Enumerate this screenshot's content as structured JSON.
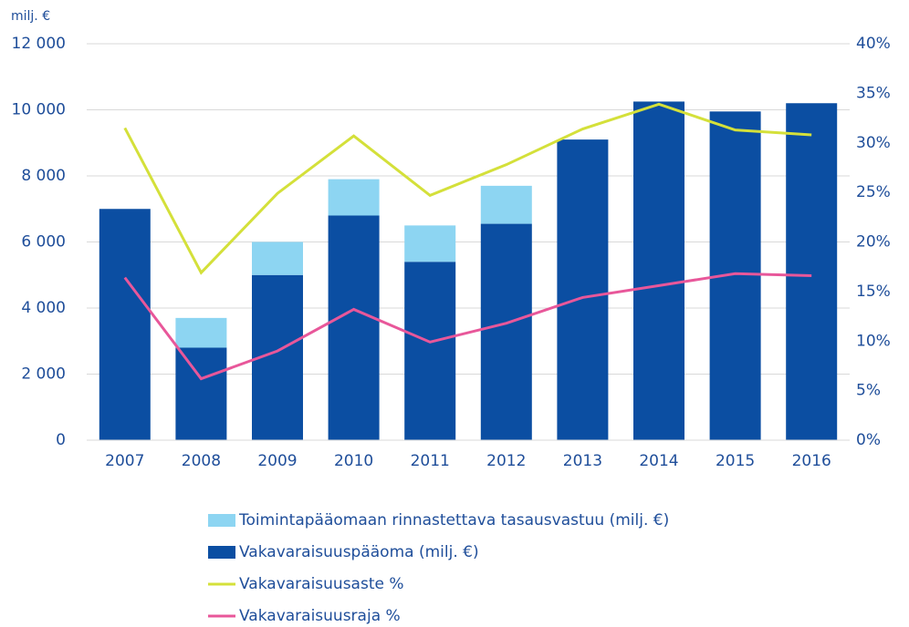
{
  "chart_data": {
    "type": "bar",
    "y_axis_label": "milj. €",
    "categories": [
      "2007",
      "2008",
      "2009",
      "2010",
      "2011",
      "2012",
      "2013",
      "2014",
      "2015",
      "2016"
    ],
    "series": [
      {
        "name": "Toimintapääomaan rinnastettava tasausvastuu (milj. €)",
        "type": "bar",
        "color": "#8dd5f2",
        "values": [
          0,
          900,
          1000,
          1100,
          1100,
          1150,
          0,
          0,
          0,
          0
        ]
      },
      {
        "name": "Vakavaraisuuspääoma (milj. €)",
        "type": "bar",
        "color": "#0b4ea2",
        "values": [
          7000,
          2800,
          5000,
          6800,
          5400,
          6550,
          9100,
          10250,
          9950,
          10200
        ]
      },
      {
        "name": "Vakavaraisuusaste %",
        "type": "line",
        "axis": "y2",
        "color": "#d4e03a",
        "values": [
          31.5,
          16.9,
          24.9,
          30.7,
          24.7,
          27.8,
          31.4,
          33.9,
          31.3,
          30.8
        ]
      },
      {
        "name": "Vakavaraisuusraja %",
        "type": "line",
        "axis": "y2",
        "color": "#e8579a",
        "values": [
          16.4,
          6.2,
          9.0,
          13.2,
          9.9,
          11.8,
          14.4,
          15.6,
          16.8,
          16.6
        ]
      }
    ],
    "ylim": [
      0,
      12000
    ],
    "yticks": [
      0,
      {
        "value": 2000,
        "label": "2 000"
      },
      {
        "value": 4000,
        "label": "4 000"
      },
      {
        "value": 6000,
        "label": "6 000"
      },
      {
        "value": 8000,
        "label": "8 000"
      },
      {
        "value": 10000,
        "label": "10 000"
      },
      {
        "value": 12000,
        "label": "12 000"
      }
    ],
    "y2lim": [
      0,
      40
    ],
    "y2ticks": [
      {
        "value": 0,
        "label": "0%"
      },
      {
        "value": 5,
        "label": "5%"
      },
      {
        "value": 10,
        "label": "10%"
      },
      {
        "value": 15,
        "label": "15%"
      },
      {
        "value": 20,
        "label": "20%"
      },
      {
        "value": 25,
        "label": "25%"
      },
      {
        "value": 30,
        "label": "30%"
      },
      {
        "value": 35,
        "label": "35%"
      },
      {
        "value": 40,
        "label": "40%"
      }
    ],
    "grid": true,
    "legend": "bottom"
  }
}
